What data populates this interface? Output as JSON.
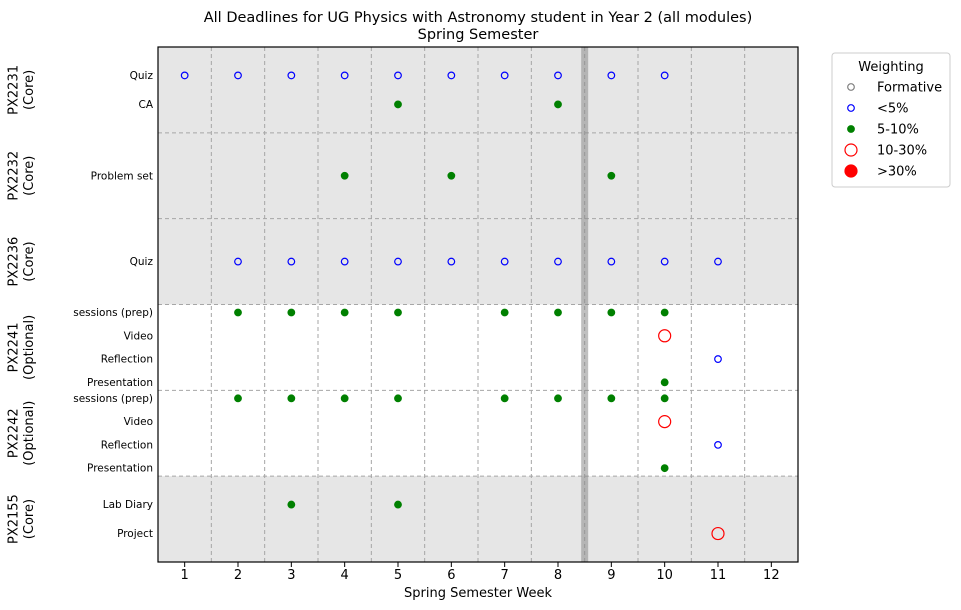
{
  "chart_data": {
    "type": "scatter",
    "title": "All Deadlines for UG Physics with Astronomy student in Year 2 (all modules)",
    "subtitle": "Spring Semester",
    "xlabel": "Spring Semester Week",
    "xlim": [
      0.5,
      12.5
    ],
    "x_ticks": [
      1,
      2,
      3,
      4,
      5,
      6,
      7,
      8,
      9,
      10,
      11,
      12
    ],
    "grid": true,
    "break_marker_week": 8.5,
    "legend": {
      "title": "Weighting",
      "placement": "outside-top-right",
      "entries": [
        {
          "label": "Formative",
          "style": "formative"
        },
        {
          "label": "<5%",
          "style": "lt5"
        },
        {
          "label": "5-10%",
          "style": "w5_10"
        },
        {
          "label": "10-30%",
          "style": "w10_30"
        },
        {
          "label": ">30%",
          "style": "gt30"
        }
      ]
    },
    "styles": {
      "formative": {
        "color": "#808080",
        "filled": false,
        "size": "small"
      },
      "lt5": {
        "color": "#0000ff",
        "filled": false,
        "size": "small"
      },
      "w5_10": {
        "color": "#008000",
        "filled": true,
        "size": "small"
      },
      "w10_30": {
        "color": "#ff0000",
        "filled": false,
        "size": "large"
      },
      "gt30": {
        "color": "#ff0000",
        "filled": true,
        "size": "large"
      }
    },
    "modules": [
      {
        "code": "PX2231",
        "type": "(Core)",
        "shaded": true,
        "assessments": [
          {
            "name": "Quiz",
            "style": "lt5",
            "weeks": [
              1,
              2,
              3,
              4,
              5,
              6,
              7,
              8,
              9,
              10
            ]
          },
          {
            "name": "CA",
            "style": "w5_10",
            "weeks": [
              5,
              8
            ]
          }
        ]
      },
      {
        "code": "PX2232",
        "type": "(Core)",
        "shaded": true,
        "assessments": [
          {
            "name": "Problem set",
            "style": "w5_10",
            "weeks": [
              4,
              6,
              9
            ]
          }
        ]
      },
      {
        "code": "PX2236",
        "type": "(Core)",
        "shaded": true,
        "assessments": [
          {
            "name": "Quiz",
            "style": "lt5",
            "weeks": [
              2,
              3,
              4,
              5,
              6,
              7,
              8,
              9,
              10,
              11
            ]
          }
        ]
      },
      {
        "code": "PX2241",
        "type": "(Optional)",
        "shaded": false,
        "assessments": [
          {
            "name": "sessions (prep)",
            "style": "w5_10",
            "weeks": [
              2,
              3,
              4,
              5,
              7,
              8,
              9,
              10
            ]
          },
          {
            "name": "Video",
            "style": "w10_30",
            "weeks": [
              10
            ]
          },
          {
            "name": "Reflection",
            "style": "lt5",
            "weeks": [
              11
            ]
          },
          {
            "name": "Presentation",
            "style": "w5_10",
            "weeks": [
              10
            ]
          }
        ]
      },
      {
        "code": "PX2242",
        "type": "(Optional)",
        "shaded": false,
        "assessments": [
          {
            "name": "sessions (prep)",
            "style": "w5_10",
            "weeks": [
              2,
              3,
              4,
              5,
              7,
              8,
              9,
              10
            ]
          },
          {
            "name": "Video",
            "style": "w10_30",
            "weeks": [
              10
            ]
          },
          {
            "name": "Reflection",
            "style": "lt5",
            "weeks": [
              11
            ]
          },
          {
            "name": "Presentation",
            "style": "w5_10",
            "weeks": [
              10
            ]
          }
        ]
      },
      {
        "code": "PX2155",
        "type": "(Core)",
        "shaded": true,
        "assessments": [
          {
            "name": "Lab Diary",
            "style": "w5_10",
            "weeks": [
              3,
              5
            ]
          },
          {
            "name": "Project",
            "style": "w10_30",
            "weeks": [
              11
            ]
          }
        ]
      }
    ]
  }
}
